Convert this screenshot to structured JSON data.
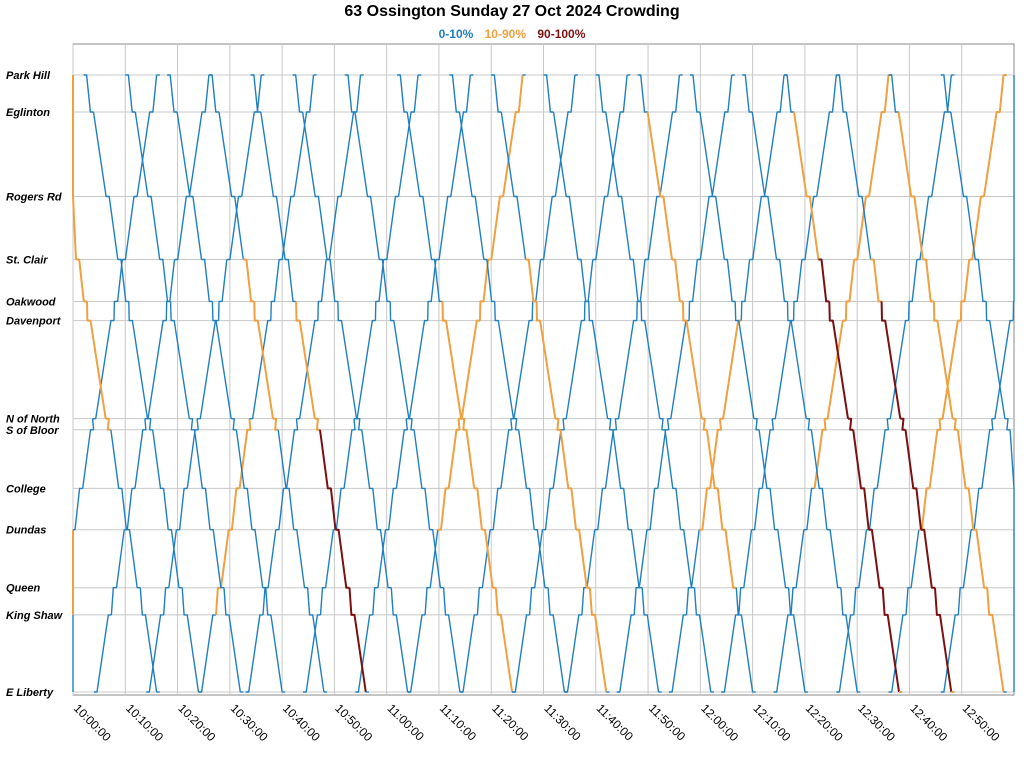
{
  "chart_data": {
    "type": "line",
    "title": "63 Ossington Sunday 27 Oct 2024 Crowding",
    "legend": [
      {
        "label": "0-10%",
        "color": "#1f7fc0"
      },
      {
        "label": "10-90%",
        "color": "#f0a040"
      },
      {
        "label": "90-100%",
        "color": "#7a1010"
      }
    ],
    "y_stops": [
      {
        "name": "Park Hill",
        "pos": 0
      },
      {
        "name": "Eglinton",
        "pos": 0.06
      },
      {
        "name": "Rogers Rd",
        "pos": 0.197
      },
      {
        "name": "St. Clair",
        "pos": 0.299
      },
      {
        "name": "Oakwood",
        "pos": 0.367
      },
      {
        "name": "Davenport",
        "pos": 0.398
      },
      {
        "name": "N of North",
        "pos": 0.557
      },
      {
        "name": "S of Bloor",
        "pos": 0.575
      },
      {
        "name": "College",
        "pos": 0.67
      },
      {
        "name": "Dundas",
        "pos": 0.737
      },
      {
        "name": "Queen",
        "pos": 0.831
      },
      {
        "name": "King Shaw",
        "pos": 0.875
      },
      {
        "name": "E Liberty",
        "pos": 1
      }
    ],
    "x_ticks": [
      "10:00:00",
      "10:10:00",
      "10:20:00",
      "10:30:00",
      "10:40:00",
      "10:50:00",
      "11:00:00",
      "11:10:00",
      "11:20:00",
      "11:30:00",
      "11:40:00",
      "11:50:00",
      "12:00:00",
      "12:10:00",
      "12:20:00",
      "12:30:00",
      "12:40:00",
      "12:50:00"
    ],
    "x_range_minutes": [
      0,
      180
    ],
    "grid": true,
    "trips": [
      {
        "dir": "N",
        "start": -6,
        "seg": "010000000"
      },
      {
        "dir": "N",
        "start": 4,
        "seg": "000000000"
      },
      {
        "dir": "N",
        "start": 14,
        "seg": "000000000"
      },
      {
        "dir": "N",
        "start": 24,
        "seg": "011100000"
      },
      {
        "dir": "N",
        "start": 33,
        "seg": "000000000"
      },
      {
        "dir": "N",
        "start": 44,
        "seg": "000000000"
      },
      {
        "dir": "N",
        "start": 54,
        "seg": "000000000"
      },
      {
        "dir": "N",
        "start": 64,
        "seg": "001111110"
      },
      {
        "dir": "N",
        "start": 74,
        "seg": "000000000"
      },
      {
        "dir": "N",
        "start": 84,
        "seg": "000000000"
      },
      {
        "dir": "N",
        "start": 94,
        "seg": "000000000"
      },
      {
        "dir": "N",
        "start": 104,
        "seg": "000000000"
      },
      {
        "dir": "N",
        "start": 114,
        "seg": "001110000"
      },
      {
        "dir": "N",
        "start": 124,
        "seg": "000000000"
      },
      {
        "dir": "N",
        "start": 134,
        "seg": "000111111"
      },
      {
        "dir": "N",
        "start": 146,
        "seg": "000000000"
      },
      {
        "dir": "N",
        "start": 156,
        "seg": "001111111"
      },
      {
        "dir": "N",
        "start": 166,
        "seg": "000000000"
      },
      {
        "dir": "S",
        "start": -6,
        "seg": "111110000"
      },
      {
        "dir": "S",
        "start": 2,
        "seg": "000000000"
      },
      {
        "dir": "S",
        "start": 10,
        "seg": "000000000"
      },
      {
        "dir": "S",
        "start": 18,
        "seg": "000000000"
      },
      {
        "dir": "S",
        "start": 26,
        "seg": "001110000"
      },
      {
        "dir": "S",
        "start": 34,
        "seg": "000112220"
      },
      {
        "dir": "S",
        "start": 42,
        "seg": "000000000"
      },
      {
        "dir": "S",
        "start": 52,
        "seg": "000000000"
      },
      {
        "dir": "S",
        "start": 62,
        "seg": "000111110"
      },
      {
        "dir": "S",
        "start": 72,
        "seg": "000000000"
      },
      {
        "dir": "S",
        "start": 80,
        "seg": "001111110"
      },
      {
        "dir": "S",
        "start": 90,
        "seg": "000000000"
      },
      {
        "dir": "S",
        "start": 100,
        "seg": "000000000"
      },
      {
        "dir": "S",
        "start": 108,
        "seg": "011111100"
      },
      {
        "dir": "S",
        "start": 118,
        "seg": "000000000"
      },
      {
        "dir": "S",
        "start": 128,
        "seg": "000000000"
      },
      {
        "dir": "S",
        "start": 136,
        "seg": "012222221"
      },
      {
        "dir": "S",
        "start": 146,
        "seg": "001222221"
      },
      {
        "dir": "S",
        "start": 156,
        "seg": "011111110"
      },
      {
        "dir": "S",
        "start": 166,
        "seg": "000000000"
      }
    ]
  }
}
